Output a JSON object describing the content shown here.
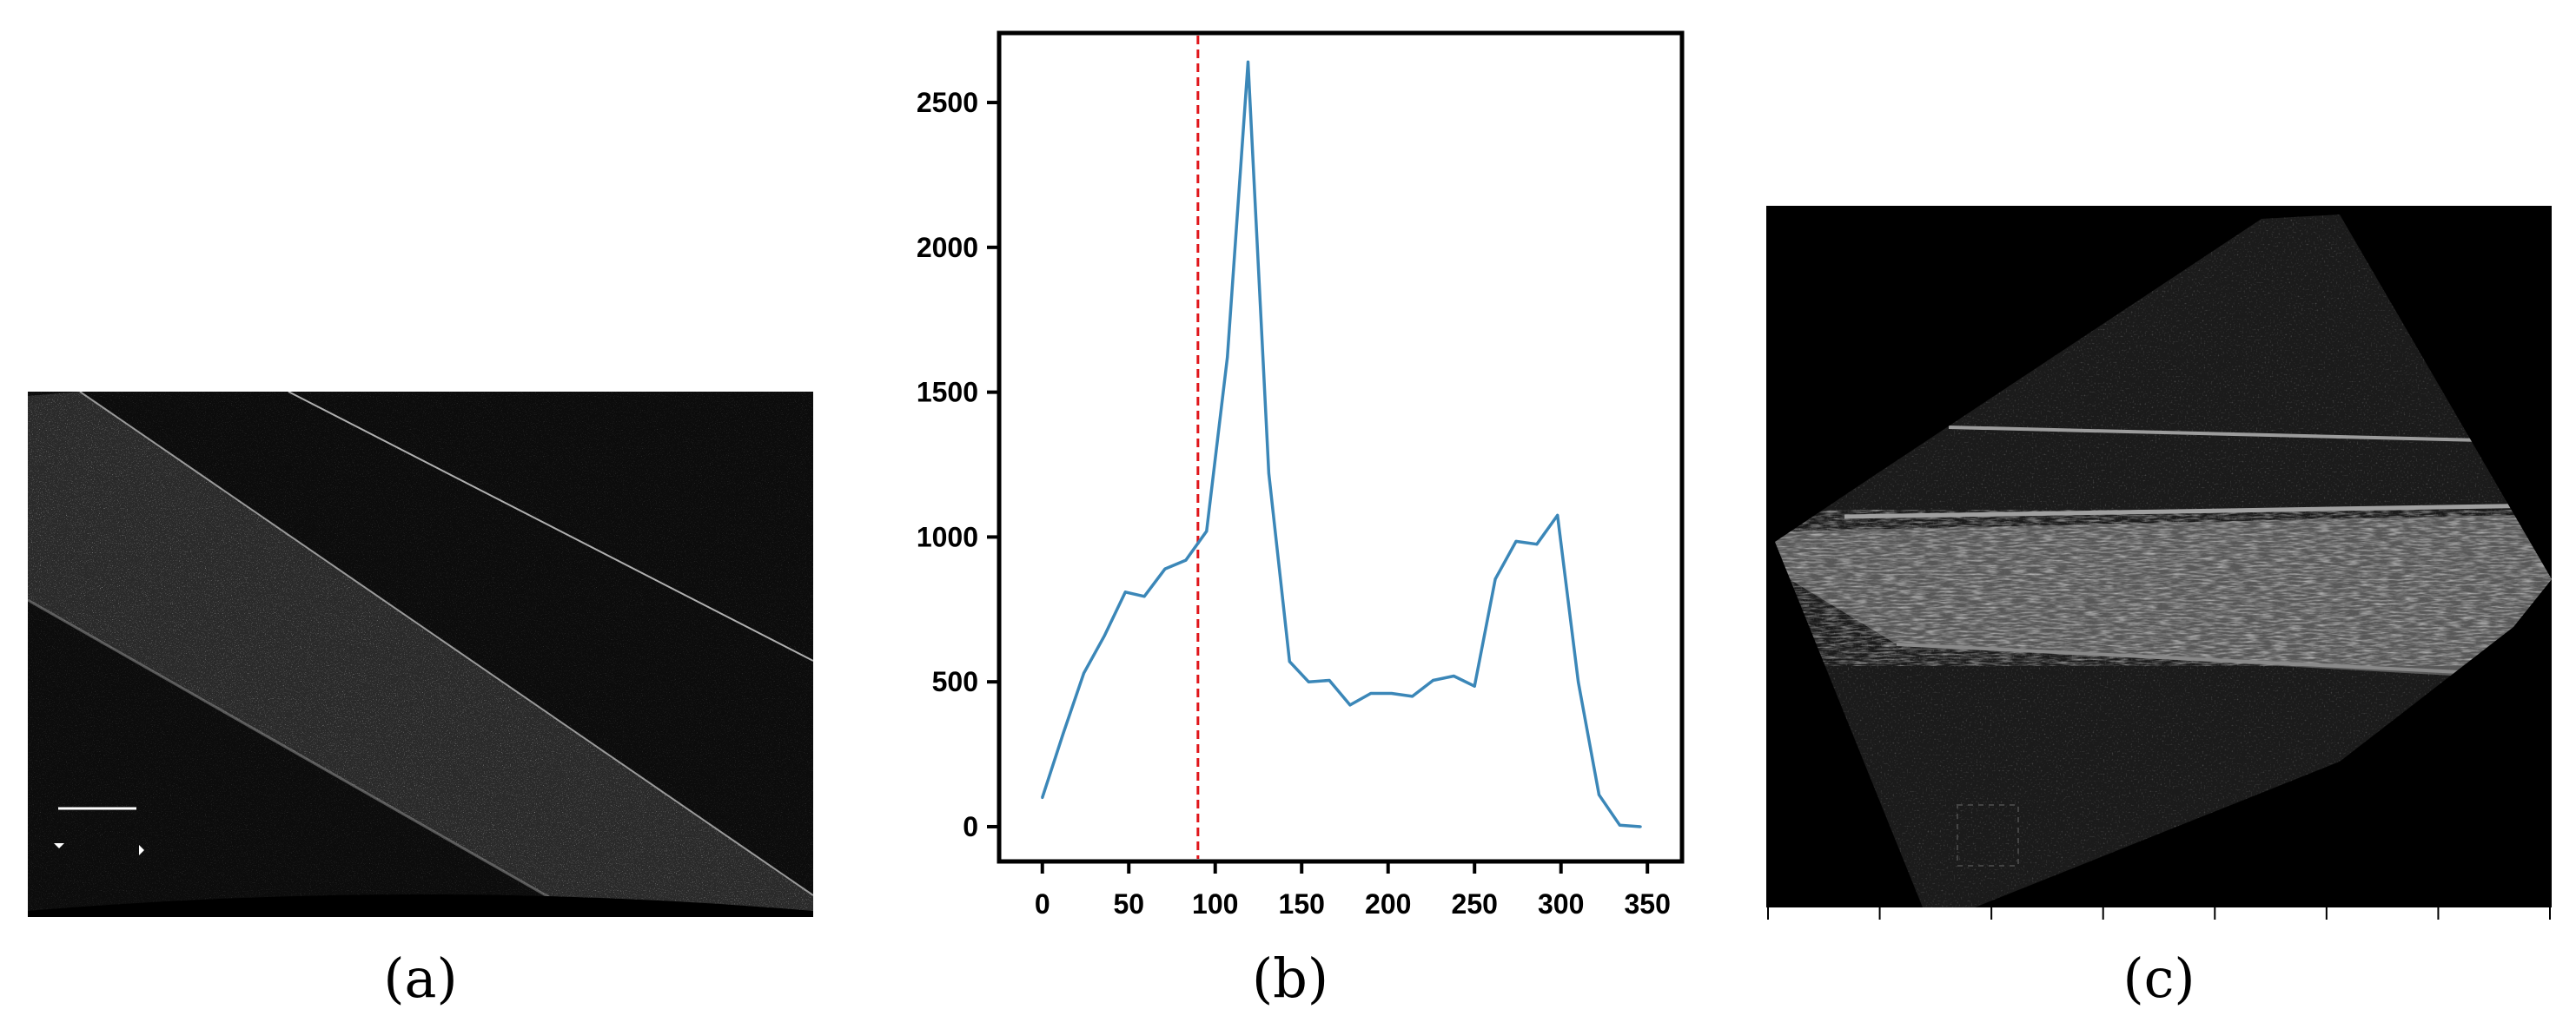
{
  "captions": {
    "a": "(a)",
    "b": "(b)",
    "c": "(c)"
  },
  "colors": {
    "line": "#3b87b8",
    "marker": "#e0151a"
  },
  "chart_data": {
    "type": "line",
    "title": "",
    "xlabel": "",
    "ylabel": "",
    "xlim": [
      -25,
      370
    ],
    "ylim": [
      -120,
      2740
    ],
    "xticks": [
      0,
      50,
      100,
      150,
      200,
      250,
      300,
      350
    ],
    "yticks": [
      0,
      500,
      1000,
      1500,
      2000,
      2500
    ],
    "grid": false,
    "legend": "none",
    "vertical_marker": {
      "x": 90,
      "style": "dashed",
      "color": "#e0151a"
    },
    "series": [
      {
        "x": [
          0,
          12,
          24,
          36,
          48,
          59,
          71,
          83,
          95,
          107,
          119,
          131,
          143,
          154,
          166,
          178,
          190,
          202,
          214,
          226,
          238,
          250,
          262,
          274,
          286,
          298,
          310,
          322,
          334,
          346
        ],
        "y": [
          100,
          320,
          530,
          660,
          810,
          795,
          890,
          920,
          1020,
          1620,
          2640,
          1220,
          570,
          500,
          505,
          420,
          460,
          460,
          450,
          505,
          520,
          485,
          855,
          985,
          975,
          1075,
          500,
          110,
          5,
          0
        ]
      }
    ]
  }
}
